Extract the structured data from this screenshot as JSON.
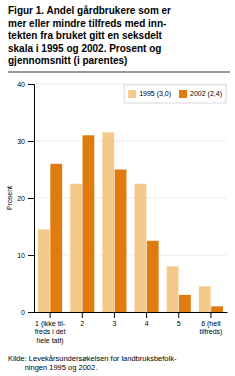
{
  "chart_data": {
    "type": "bar",
    "title": "Figur 1. Andel gårdbrukere som er\nmer eller mindre tilfreds med inn-\ntekten fra bruket gitt en seksdelt\nskala i 1995 og 2002. Prosent og\ngjennomsnitt (i parentes)",
    "categories": [
      "1 (ikke til-\nfreds i det\nhele tatt)",
      "2",
      "3",
      "4",
      "5",
      "6 (helt\ntilfreds)"
    ],
    "series": [
      {
        "name": "1995 (3,0)",
        "color": "#f5c98a",
        "values": [
          14.5,
          22.5,
          31.5,
          22.5,
          8.0,
          4.5
        ]
      },
      {
        "name": "2002 (2,4)",
        "color": "#e07b10",
        "values": [
          26.0,
          31.0,
          25.0,
          12.5,
          3.0,
          1.0
        ]
      }
    ],
    "ylabel": "Prosent",
    "ylim": [
      0,
      40
    ],
    "yticks": [
      0,
      10,
      20,
      30,
      40
    ],
    "grid": true,
    "legend": "upper right",
    "source": "Kilde: Levekårsundersøkelsen for landbruksbefolk-\n        ningen 1995 og 2002."
  }
}
